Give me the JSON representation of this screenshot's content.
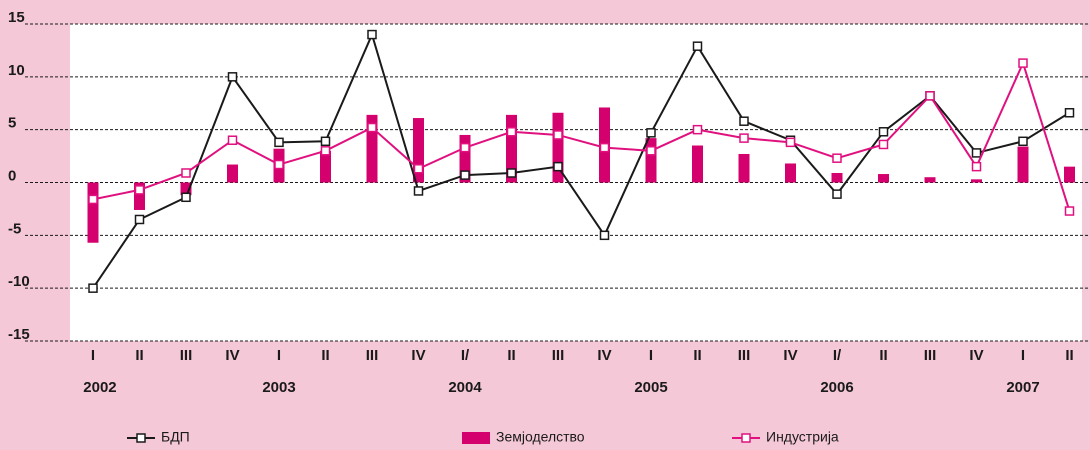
{
  "chart_data": {
    "type": "line",
    "categories": [
      "I",
      "II",
      "III",
      "IV",
      "I",
      "II",
      "III",
      "IV",
      "I/",
      "II",
      "III",
      "IV",
      "I",
      "II",
      "III",
      "IV",
      "I/",
      "II",
      "III",
      "IV",
      "I",
      "II"
    ],
    "years": [
      "2002",
      "2003",
      "2004",
      "2005",
      "2006",
      "2007"
    ],
    "series": [
      {
        "name": "БДП",
        "type": "line",
        "color": "#1a1a1a",
        "values": [
          -10,
          -3.5,
          -1.4,
          10,
          3.8,
          3.9,
          14,
          -0.8,
          0.7,
          0.9,
          1.5,
          -5,
          4.7,
          12.9,
          5.8,
          4,
          -1.1,
          4.8,
          8.2,
          2.8,
          3.9,
          6.6
        ]
      },
      {
        "name": "Земјоделство",
        "type": "bar",
        "color": "#d4006e",
        "values": [
          -5.7,
          -2.6,
          -1.2,
          1.7,
          3.2,
          3,
          6.4,
          6.1,
          4.5,
          6.4,
          6.6,
          7.1,
          4.2,
          3.5,
          2.7,
          1.8,
          0.9,
          0.8,
          0.5,
          0.3,
          3.4,
          1.5
        ]
      },
      {
        "name": "Индустрија",
        "type": "line",
        "color": "#e0117f",
        "values": [
          -1.6,
          -0.7,
          0.9,
          4,
          1.7,
          3,
          5.2,
          1.3,
          3.3,
          4.8,
          4.5,
          3.3,
          3,
          5,
          4.2,
          3.8,
          2.3,
          3.6,
          8.2,
          1.5,
          11.3,
          -2.7
        ]
      }
    ],
    "ylim": [
      -15,
      15
    ],
    "yticks": [
      -15,
      -10,
      -5,
      0,
      5,
      10,
      15
    ],
    "grid": true
  }
}
